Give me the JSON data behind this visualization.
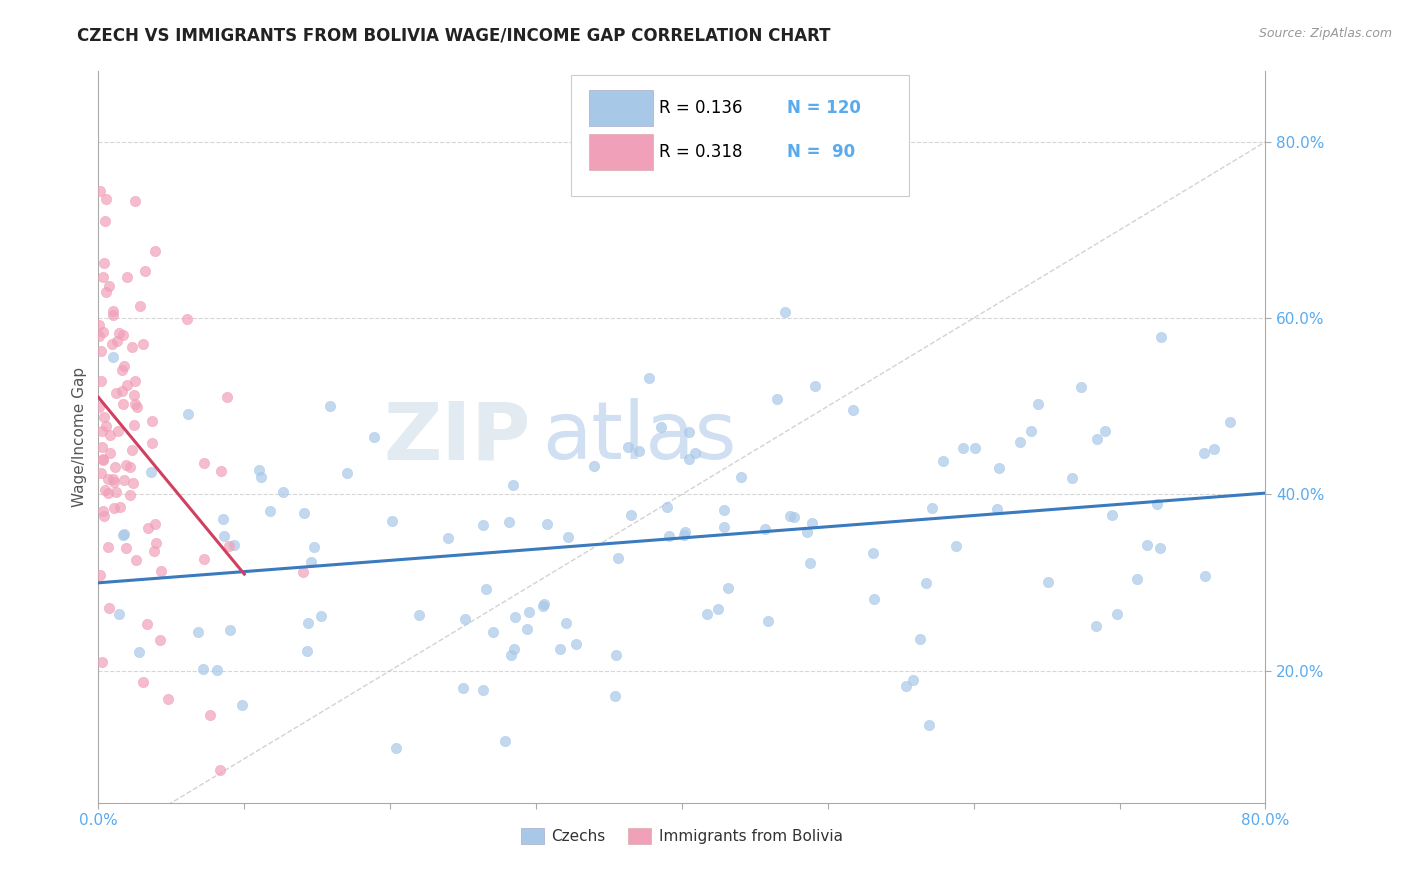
{
  "title": "CZECH VS IMMIGRANTS FROM BOLIVIA WAGE/INCOME GAP CORRELATION CHART",
  "source": "Source: ZipAtlas.com",
  "ylabel": "Wage/Income Gap",
  "xmin": 0.0,
  "xmax": 0.8,
  "ymin": 0.05,
  "ymax": 0.88,
  "color_czech": "#a8c8e8",
  "color_bolivia": "#f0a0b8",
  "color_trendline_czech": "#3a7abf",
  "color_trendline_bolivia": "#d04060",
  "color_diagonal": "#c8c8c8",
  "color_tick": "#5aabee",
  "watermark_zip": "ZIP",
  "watermark_atlas": "atlas",
  "czech_R": 0.136,
  "czech_N": 120,
  "bolivia_R": 0.318,
  "bolivia_N": 90,
  "ytick_positions": [
    0.2,
    0.4,
    0.6,
    0.8
  ],
  "ytick_labels": [
    "20.0%",
    "40.0%",
    "60.0%",
    "80.0%"
  ],
  "xtick_positions": [
    0.0,
    0.1,
    0.2,
    0.3,
    0.4,
    0.5,
    0.6,
    0.7,
    0.8
  ],
  "xtick_labels": [
    "0.0%",
    "",
    "",
    "",
    "",
    "",
    "",
    "",
    "80.0%"
  ]
}
